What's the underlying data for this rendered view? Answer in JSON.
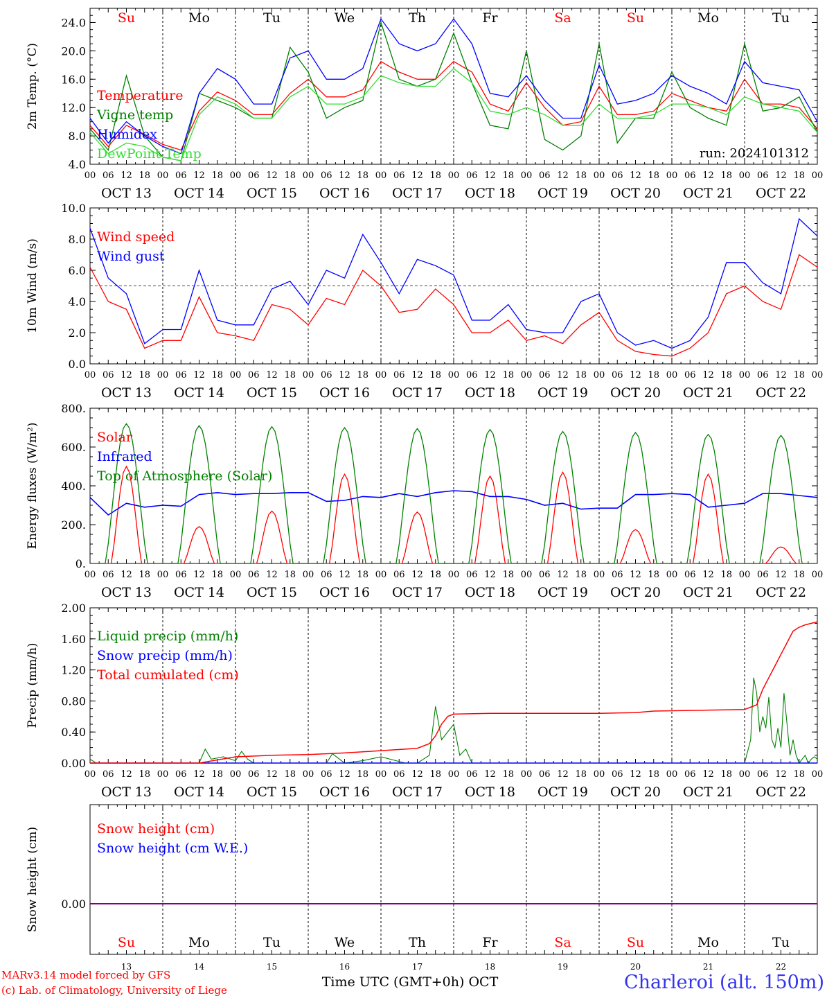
{
  "days": [
    {
      "abbr": "Su",
      "date": "OCT 13",
      "num": "13",
      "weekend": true
    },
    {
      "abbr": "Mo",
      "date": "OCT 14",
      "num": "14",
      "weekend": false
    },
    {
      "abbr": "Tu",
      "date": "OCT 15",
      "num": "15",
      "weekend": false
    },
    {
      "abbr": "We",
      "date": "OCT 16",
      "num": "16",
      "weekend": false
    },
    {
      "abbr": "Th",
      "date": "OCT 17",
      "num": "17",
      "weekend": false
    },
    {
      "abbr": "Fr",
      "date": "OCT 18",
      "num": "18",
      "weekend": false
    },
    {
      "abbr": "Sa",
      "date": "OCT 19",
      "num": "19",
      "weekend": true
    },
    {
      "abbr": "Su",
      "date": "OCT 20",
      "num": "20",
      "weekend": true
    },
    {
      "abbr": "Mo",
      "date": "OCT 21",
      "num": "21",
      "weekend": false
    },
    {
      "abbr": "Tu",
      "date": "OCT 22",
      "num": "22",
      "weekend": false
    }
  ],
  "hour_ticks": [
    "00",
    "06",
    "12",
    "18"
  ],
  "footer": {
    "model": "MARv3.14 model forced by GFS",
    "lab": "(c) Lab. of Climatology, University of Liege",
    "xlabel": "Time UTC (GMT+0h) OCT",
    "station": "Charleroi (alt. 150m)"
  },
  "colors": {
    "red": "#ff0000",
    "darkgreen": "#008000",
    "blue": "#0000ff",
    "lightgreen": "#33dd33",
    "purple": "#800080"
  },
  "chart_data": [
    {
      "id": "temp",
      "type": "line",
      "ylabel": "2m Temp. (°C)",
      "ylim": [
        4,
        26
      ],
      "yticks": [
        4,
        8,
        12,
        16,
        20,
        24
      ],
      "ytick_labels": [
        "4.0",
        "8.0",
        "12.0",
        "16.0",
        "20.0",
        "24.0"
      ],
      "annotation": "run: 2024101312",
      "x": [
        0,
        6,
        12,
        18,
        24,
        30,
        36,
        42,
        48,
        54,
        60,
        66,
        72,
        78,
        84,
        90,
        96,
        102,
        108,
        114,
        120,
        126,
        132,
        138,
        144,
        150,
        156,
        162,
        168,
        174,
        180,
        186,
        192,
        198,
        204,
        210,
        216,
        222,
        228,
        234,
        240
      ],
      "series": [
        {
          "name": "Temperature",
          "color": "#ff0000",
          "values": [
            9.5,
            6.5,
            9.5,
            8.2,
            6.8,
            6.0,
            11.5,
            14.2,
            13.0,
            11.0,
            11.0,
            14.0,
            16.0,
            13.5,
            13.5,
            14.5,
            18.5,
            17.0,
            16.0,
            16.0,
            18.5,
            17.0,
            12.5,
            11.5,
            15.5,
            12.0,
            9.5,
            10.0,
            15.0,
            11.0,
            11.0,
            11.5,
            14.0,
            13.0,
            12.0,
            11.5,
            16.0,
            12.5,
            12.5,
            12.0,
            9.0
          ]
        },
        {
          "name": "Vigne temp",
          "color": "#008000",
          "values": [
            9.0,
            6.0,
            16.5,
            8.0,
            5.0,
            4.5,
            14.0,
            13.0,
            12.0,
            10.5,
            10.5,
            20.5,
            17.0,
            10.5,
            12.0,
            13.0,
            24.0,
            16.0,
            15.0,
            16.0,
            22.5,
            15.5,
            9.5,
            9.0,
            20.0,
            7.5,
            6.0,
            8.0,
            21.0,
            7.0,
            10.5,
            10.5,
            17.0,
            12.0,
            10.5,
            9.5,
            21.0,
            11.5,
            12.0,
            13.5,
            8.5
          ]
        },
        {
          "name": "Humidex",
          "color": "#0000ff",
          "values": [
            10.5,
            7.0,
            10.0,
            8.0,
            6.5,
            5.5,
            14.0,
            17.5,
            16.0,
            12.5,
            12.5,
            19.0,
            20.0,
            16.0,
            16.0,
            17.5,
            24.5,
            21.0,
            20.0,
            21.0,
            24.5,
            21.0,
            14.0,
            13.5,
            16.5,
            13.0,
            10.5,
            10.5,
            18.0,
            12.5,
            13.0,
            14.0,
            16.5,
            15.0,
            14.0,
            12.5,
            18.5,
            15.5,
            15.0,
            14.5,
            10.0
          ]
        },
        {
          "name": "DewPoint Temp",
          "color": "#33dd33",
          "values": [
            8.5,
            5.5,
            7.0,
            6.5,
            5.0,
            4.5,
            11.0,
            13.5,
            12.5,
            10.5,
            10.5,
            13.5,
            15.0,
            12.5,
            12.5,
            13.5,
            16.5,
            15.5,
            15.0,
            15.0,
            17.5,
            15.5,
            11.5,
            11.0,
            12.0,
            11.0,
            9.5,
            9.5,
            12.5,
            10.5,
            10.5,
            11.0,
            12.5,
            12.5,
            12.0,
            11.0,
            13.5,
            12.5,
            12.0,
            11.5,
            8.5
          ]
        }
      ]
    },
    {
      "id": "wind",
      "type": "line",
      "ylabel": "10m Wind (m/s)",
      "ylim": [
        0,
        10
      ],
      "yticks": [
        0,
        2,
        4,
        6,
        8,
        10
      ],
      "ytick_labels": [
        "0.0",
        "2.0",
        "4.0",
        "6.0",
        "8.0",
        "10.0"
      ],
      "reference_line": 5,
      "x": [
        0,
        6,
        12,
        18,
        24,
        30,
        36,
        42,
        48,
        54,
        60,
        66,
        72,
        78,
        84,
        90,
        96,
        102,
        108,
        114,
        120,
        126,
        132,
        138,
        144,
        150,
        156,
        162,
        168,
        174,
        180,
        186,
        192,
        198,
        204,
        210,
        216,
        222,
        228,
        234,
        240
      ],
      "series": [
        {
          "name": "Wind speed",
          "color": "#ff0000",
          "values": [
            6.2,
            4.0,
            3.5,
            1.0,
            1.5,
            1.5,
            4.3,
            2.0,
            1.8,
            1.5,
            3.8,
            3.5,
            2.5,
            4.2,
            3.8,
            6.0,
            5.0,
            3.3,
            3.5,
            4.8,
            3.8,
            2.0,
            2.0,
            2.8,
            1.5,
            1.8,
            1.3,
            2.5,
            3.3,
            1.5,
            0.8,
            0.6,
            0.5,
            1.0,
            2.0,
            4.5,
            5.0,
            4.0,
            3.5,
            7.0,
            6.2
          ]
        },
        {
          "name": "Wind gust",
          "color": "#0000ff",
          "values": [
            8.7,
            5.5,
            4.5,
            1.3,
            2.2,
            2.2,
            6.0,
            2.8,
            2.5,
            2.5,
            4.8,
            5.3,
            3.8,
            6.0,
            5.5,
            8.3,
            6.5,
            4.5,
            6.7,
            6.3,
            5.7,
            2.8,
            2.8,
            3.8,
            2.2,
            2.0,
            2.0,
            4.0,
            4.5,
            2.0,
            1.2,
            1.5,
            1.0,
            1.5,
            3.0,
            6.5,
            6.5,
            5.2,
            4.5,
            9.3,
            8.2
          ]
        }
      ]
    },
    {
      "id": "energy",
      "type": "line",
      "ylabel": "Energy fluxes (W/m²)",
      "ylim": [
        0,
        800
      ],
      "yticks": [
        0,
        200,
        400,
        600,
        800
      ],
      "ytick_labels": [
        "0.",
        "200.",
        "400.",
        "600.",
        "800."
      ],
      "days_peak_hour": 12,
      "series": [
        {
          "name": "Solar",
          "color": "#ff0000",
          "daily_peaks": [
            500,
            190,
            270,
            460,
            265,
            450,
            470,
            175,
            460,
            85
          ]
        },
        {
          "name": "Infrared",
          "color": "#0000ff",
          "x": [
            0,
            6,
            12,
            18,
            24,
            30,
            36,
            42,
            48,
            54,
            60,
            66,
            72,
            78,
            84,
            90,
            96,
            102,
            108,
            114,
            120,
            126,
            132,
            138,
            144,
            150,
            156,
            162,
            168,
            174,
            180,
            186,
            192,
            198,
            204,
            210,
            216,
            222,
            228,
            234,
            240
          ],
          "values": [
            340,
            250,
            310,
            290,
            300,
            295,
            355,
            365,
            355,
            360,
            360,
            365,
            365,
            320,
            325,
            345,
            340,
            360,
            345,
            365,
            375,
            370,
            345,
            345,
            330,
            300,
            310,
            280,
            285,
            285,
            355,
            355,
            360,
            355,
            290,
            300,
            310,
            360,
            360,
            350,
            340
          ]
        },
        {
          "name": "Top of Atmosphere (Solar)",
          "color": "#008000",
          "daily_peaks": [
            720,
            710,
            705,
            700,
            695,
            690,
            680,
            675,
            665,
            660
          ]
        }
      ]
    },
    {
      "id": "precip",
      "type": "line",
      "ylabel": "Precip (mm/h)",
      "ylim": [
        0,
        2
      ],
      "yticks": [
        0,
        0.4,
        0.8,
        1.2,
        1.6,
        2.0
      ],
      "ytick_labels": [
        "0.00",
        "0.40",
        "0.80",
        "1.20",
        "1.60",
        "2.00"
      ],
      "series": [
        {
          "name": "Liquid precip (mm/h)",
          "color": "#008000",
          "x": [
            0,
            2,
            24,
            36,
            38,
            40,
            44,
            48,
            50,
            52,
            54,
            72,
            78,
            80,
            84,
            90,
            96,
            104,
            108,
            112,
            114,
            116,
            120,
            122,
            124,
            126,
            186,
            192,
            194,
            198,
            216,
            228,
            230,
            232,
            234,
            236,
            238,
            240,
            244,
            246,
            248,
            250,
            252,
            254,
            256,
            258,
            260,
            262,
            264,
            266,
            268,
            270,
            272,
            240
          ],
          "values": [
            0.05,
            0.0,
            0.0,
            0.0,
            0.18,
            0.05,
            0.08,
            0.03,
            0.15,
            0.05,
            0.0,
            0.0,
            0.0,
            0.12,
            0.0,
            0.03,
            0.08,
            0.0,
            0.0,
            0.1,
            0.73,
            0.3,
            0.5,
            0.1,
            0.18,
            0.0,
            0.0,
            0.05,
            0.1,
            0.0,
            0.0,
            0.0,
            0.0,
            0.0,
            0.0,
            0.0,
            0.0,
            0.0,
            0.0,
            0.0,
            0.0,
            0.0,
            0.0,
            0.0,
            0.0,
            0.0,
            0.0,
            0.0,
            0.0,
            0.0,
            0.0,
            0.0,
            0.0,
            0.0
          ]
        },
        {
          "name": "Snow precip (mm/h)",
          "color": "#0000ff",
          "x": [
            0,
            240
          ],
          "values": [
            0,
            0
          ]
        },
        {
          "name": "Total cumulated (cm)",
          "color": "#ff0000",
          "x": [
            0,
            36,
            48,
            60,
            72,
            84,
            96,
            108,
            112,
            114,
            116,
            118,
            120,
            132,
            144,
            168,
            180,
            186,
            216,
            220,
            222,
            224,
            226,
            228,
            230,
            232,
            234,
            236,
            238,
            240
          ],
          "values": [
            0.0,
            0.0,
            0.08,
            0.1,
            0.11,
            0.13,
            0.16,
            0.19,
            0.25,
            0.35,
            0.5,
            0.6,
            0.63,
            0.64,
            0.64,
            0.64,
            0.65,
            0.67,
            0.69,
            0.75,
            0.95,
            1.1,
            1.25,
            1.4,
            1.55,
            1.7,
            1.75,
            1.78,
            1.8,
            1.82
          ]
        }
      ],
      "green_tail": {
        "x": [
          216,
          218,
          219,
          220,
          221,
          222,
          223,
          224,
          225,
          226,
          227,
          228,
          229,
          230,
          231,
          232,
          233,
          234,
          235,
          236,
          237,
          238,
          239,
          240
        ],
        "values": [
          0.0,
          0.3,
          1.1,
          0.9,
          0.4,
          0.6,
          0.45,
          0.85,
          0.3,
          0.2,
          0.45,
          0.2,
          0.9,
          0.5,
          0.1,
          0.3,
          0.1,
          0.0,
          0.05,
          0.1,
          0.0,
          0.05,
          0.08,
          0.05
        ]
      }
    },
    {
      "id": "snow",
      "type": "line",
      "ylabel": "Snow height (cm)",
      "ytick_labels": [
        "0.00"
      ],
      "series": [
        {
          "name": "Snow height (cm)",
          "color": "#ff0000",
          "values": [
            0,
            0
          ]
        },
        {
          "name": "Snow height (cm W.E.)",
          "color": "#0000ff",
          "values": [
            0,
            0
          ]
        }
      ]
    }
  ]
}
